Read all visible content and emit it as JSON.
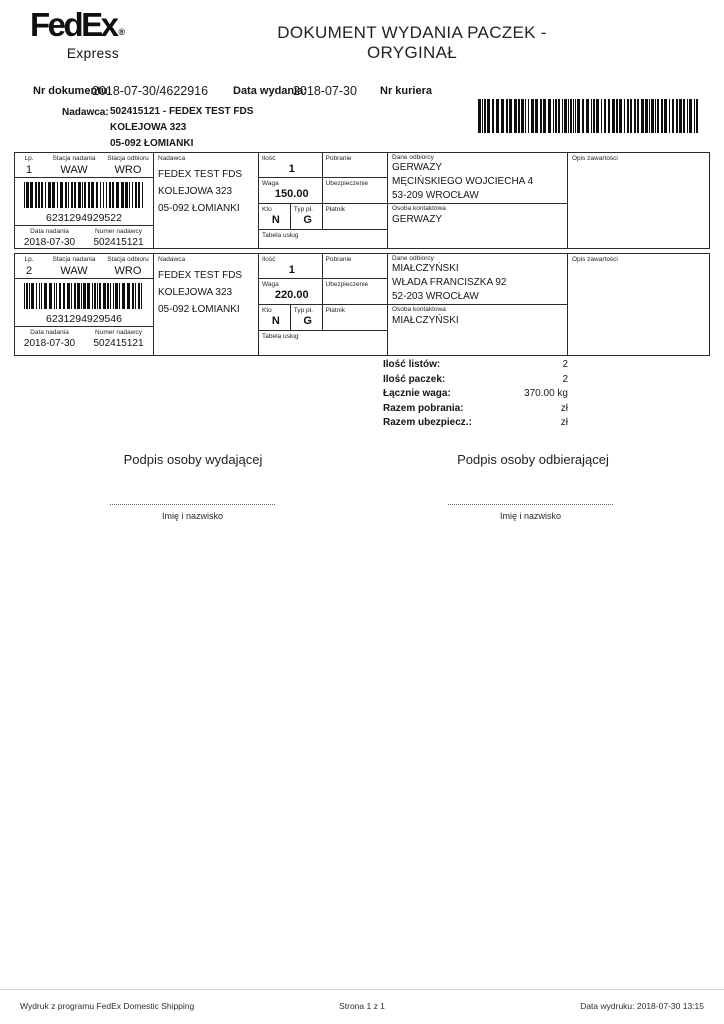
{
  "logo": {
    "brand": "FedEx",
    "registered": "®",
    "sub": "Express"
  },
  "title": "DOKUMENT WYDANIA PACZEK - ORYGINAŁ",
  "header": {
    "doc_number_label": "Nr dokumentu:",
    "doc_number": "2018-07-30/4622916",
    "issue_date_label": "Data wydania:",
    "issue_date": "2018-07-30",
    "courier_label": "Nr kuriera",
    "sender_label": "Nadawca:",
    "sender_lines": [
      "502415121 - FEDEX TEST FDS",
      "KOLEJOWA 323",
      "05-092 ŁOMIANKI"
    ]
  },
  "table": {
    "labels": {
      "lp": "Lp.",
      "origin": "Stacja nadania",
      "dest": "Stacja odbioru",
      "ship_date": "Data nadania",
      "sender_no": "Numer nadawcy",
      "sender": "Nadawca",
      "qty": "Ilość",
      "cod": "Pobranie",
      "weight": "Waga",
      "insurance": "Ubezpieczenie",
      "who": "Kto",
      "pay_type": "Typ pł.",
      "payer": "Płatnik",
      "services": "Tabela usług",
      "recipient": "Dane odbiorcy",
      "contact": "Osoba kontaktowa",
      "contents": "Opis zawartości"
    },
    "rows": [
      {
        "lp": "1",
        "origin": "WAW",
        "dest": "WRO",
        "barcode": "6231294929522",
        "ship_date": "2018-07-30",
        "sender_no": "502415121",
        "sender_lines": [
          "FEDEX TEST FDS",
          "KOLEJOWA 323",
          "05-092 ŁOMIANKI"
        ],
        "qty": "1",
        "cod": "",
        "weight": "150.00",
        "insurance": "",
        "who": "N",
        "pay_type": "G",
        "payer": "",
        "services": "",
        "recipient_lines": [
          "GERWAZY",
          "MĘCIŃSKIEGO WOJCIECHA 4",
          "53-209 WROCŁAW"
        ],
        "contact": "GERWAZY",
        "contents": ""
      },
      {
        "lp": "2",
        "origin": "WAW",
        "dest": "WRO",
        "barcode": "6231294929546",
        "ship_date": "2018-07-30",
        "sender_no": "502415121",
        "sender_lines": [
          "FEDEX TEST FDS",
          "KOLEJOWA 323",
          "05-092 ŁOMIANKI"
        ],
        "qty": "1",
        "cod": "",
        "weight": "220.00",
        "insurance": "",
        "who": "N",
        "pay_type": "G",
        "payer": "",
        "services": "",
        "recipient_lines": [
          "MIAŁCZYŃSKI",
          "WŁADA FRANCISZKA 92",
          "52-203 WROCŁAW"
        ],
        "contact": "MIAŁCZYŃSKI",
        "contents": ""
      }
    ]
  },
  "summary": {
    "rows": [
      {
        "label": "Ilość listów:",
        "value": "2"
      },
      {
        "label": "Ilość paczek:",
        "value": "2"
      },
      {
        "label": "Łącznie waga:",
        "value": "370.00 kg"
      },
      {
        "label": "Razem pobrania:",
        "value": "zł"
      },
      {
        "label": "Razem ubezpiecz.:",
        "value": "zł"
      }
    ]
  },
  "signatures": {
    "issuer_title": "Podpis osoby wydającej",
    "receiver_title": "Podpis osoby odbierającej",
    "name_caption": "Imię i nazwisko"
  },
  "footer": {
    "left": "Wydruk z programu FedEx Domestic Shipping",
    "center": "Strona 1 z 1",
    "right": "Data wydruku: 2018-07-30 13:15"
  },
  "colors": {
    "ink": "#1b1b1b"
  }
}
